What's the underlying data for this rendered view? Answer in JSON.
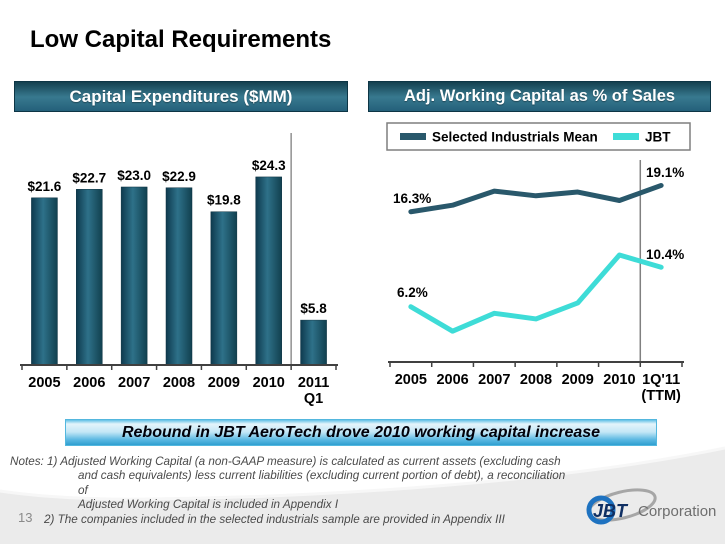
{
  "slide": {
    "title": "Low Capital Requirements",
    "page_number": "13",
    "banner": "Rebound in JBT AeroTech drove 2010 working capital increase",
    "logo": {
      "name": "JBT",
      "suffix": "Corporation"
    }
  },
  "notes": {
    "lines": [
      "Notes: 1) Adjusted Working Capital (a non-GAAP measure) is calculated as current assets (excluding cash",
      "and cash equivalents) less current liabilities (excluding current portion of debt), a reconciliation of",
      "Adjusted Working Capital is included in Appendix I",
      "2) The companies included in the selected industrials sample are provided in Appendix III"
    ]
  },
  "chart_data": [
    {
      "type": "bar",
      "title": "Capital Expenditures ($MM)",
      "categories": [
        "2005",
        "2006",
        "2007",
        "2008",
        "2009",
        "2010",
        "2011\nQ1"
      ],
      "values": [
        21.6,
        22.7,
        23.0,
        22.9,
        19.8,
        24.3,
        5.8
      ],
      "labels": [
        "$21.6",
        "$22.7",
        "$23.0",
        "$22.9",
        "$19.8",
        "$24.3",
        "$5.8"
      ],
      "xlabel": "",
      "ylabel": "",
      "ylim": [
        0,
        26
      ],
      "grid": false,
      "bar_color": "#1d5a70",
      "separator_after_index": 5
    },
    {
      "type": "line",
      "title": "Adj. Working Capital as % of Sales",
      "categories": [
        "2005",
        "2006",
        "2007",
        "2008",
        "2009",
        "2010",
        "1Q'11\n(TTM)"
      ],
      "series": [
        {
          "name": "Selected Industrials Mean",
          "color": "#29586b",
          "values": [
            16.3,
            17.0,
            18.5,
            18.0,
            18.4,
            17.5,
            19.1
          ]
        },
        {
          "name": "JBT",
          "color": "#3edcd7",
          "values": [
            6.2,
            3.6,
            5.5,
            4.9,
            6.6,
            11.7,
            10.4
          ]
        }
      ],
      "annotations": [
        {
          "text": "16.3%",
          "series": "Selected Industrials Mean",
          "point": "2005"
        },
        {
          "text": "19.1%",
          "series": "Selected Industrials Mean",
          "point": "1Q'11 (TTM)"
        },
        {
          "text": "6.2%",
          "series": "JBT",
          "point": "2005"
        },
        {
          "text": "10.4%",
          "series": "JBT",
          "point": "1Q'11 (TTM)"
        }
      ],
      "legend_position": "top",
      "ylim": [
        0,
        22
      ],
      "grid": false,
      "separator_after_index": 5
    }
  ]
}
